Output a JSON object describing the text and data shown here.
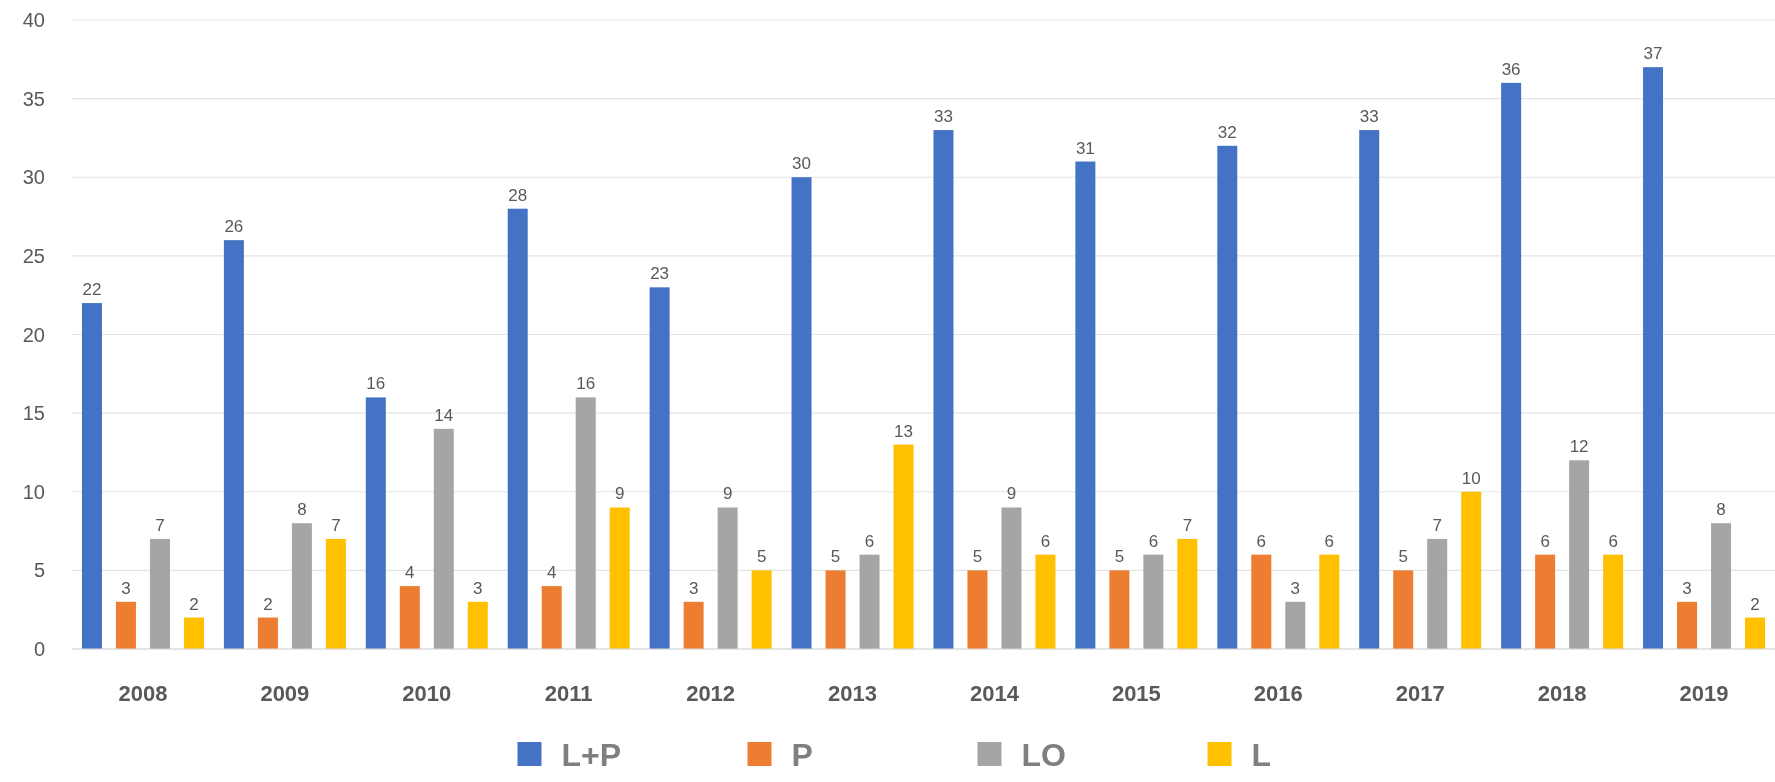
{
  "chart_data": {
    "type": "bar",
    "categories": [
      "2008",
      "2009",
      "2010",
      "2011",
      "2012",
      "2013",
      "2014",
      "2015",
      "2016",
      "2017",
      "2018",
      "2019"
    ],
    "series": [
      {
        "name": "L+P",
        "color": "#4472c4",
        "values": [
          22,
          26,
          16,
          28,
          23,
          30,
          33,
          31,
          32,
          33,
          36,
          37
        ]
      },
      {
        "name": "P",
        "color": "#ed7d31",
        "values": [
          3,
          2,
          4,
          4,
          3,
          5,
          5,
          5,
          6,
          5,
          6,
          3
        ]
      },
      {
        "name": "LO",
        "color": "#a5a5a5",
        "values": [
          7,
          8,
          14,
          16,
          9,
          6,
          9,
          6,
          3,
          7,
          12,
          8
        ]
      },
      {
        "name": "L",
        "color": "#ffc000",
        "values": [
          2,
          7,
          3,
          9,
          5,
          13,
          6,
          7,
          6,
          10,
          6,
          2
        ]
      }
    ],
    "ylim": [
      0,
      40
    ],
    "yticks": [
      0,
      5,
      10,
      15,
      20,
      25,
      30,
      35,
      40
    ],
    "grid": "y",
    "legend": "bottom",
    "data_labels": true
  }
}
